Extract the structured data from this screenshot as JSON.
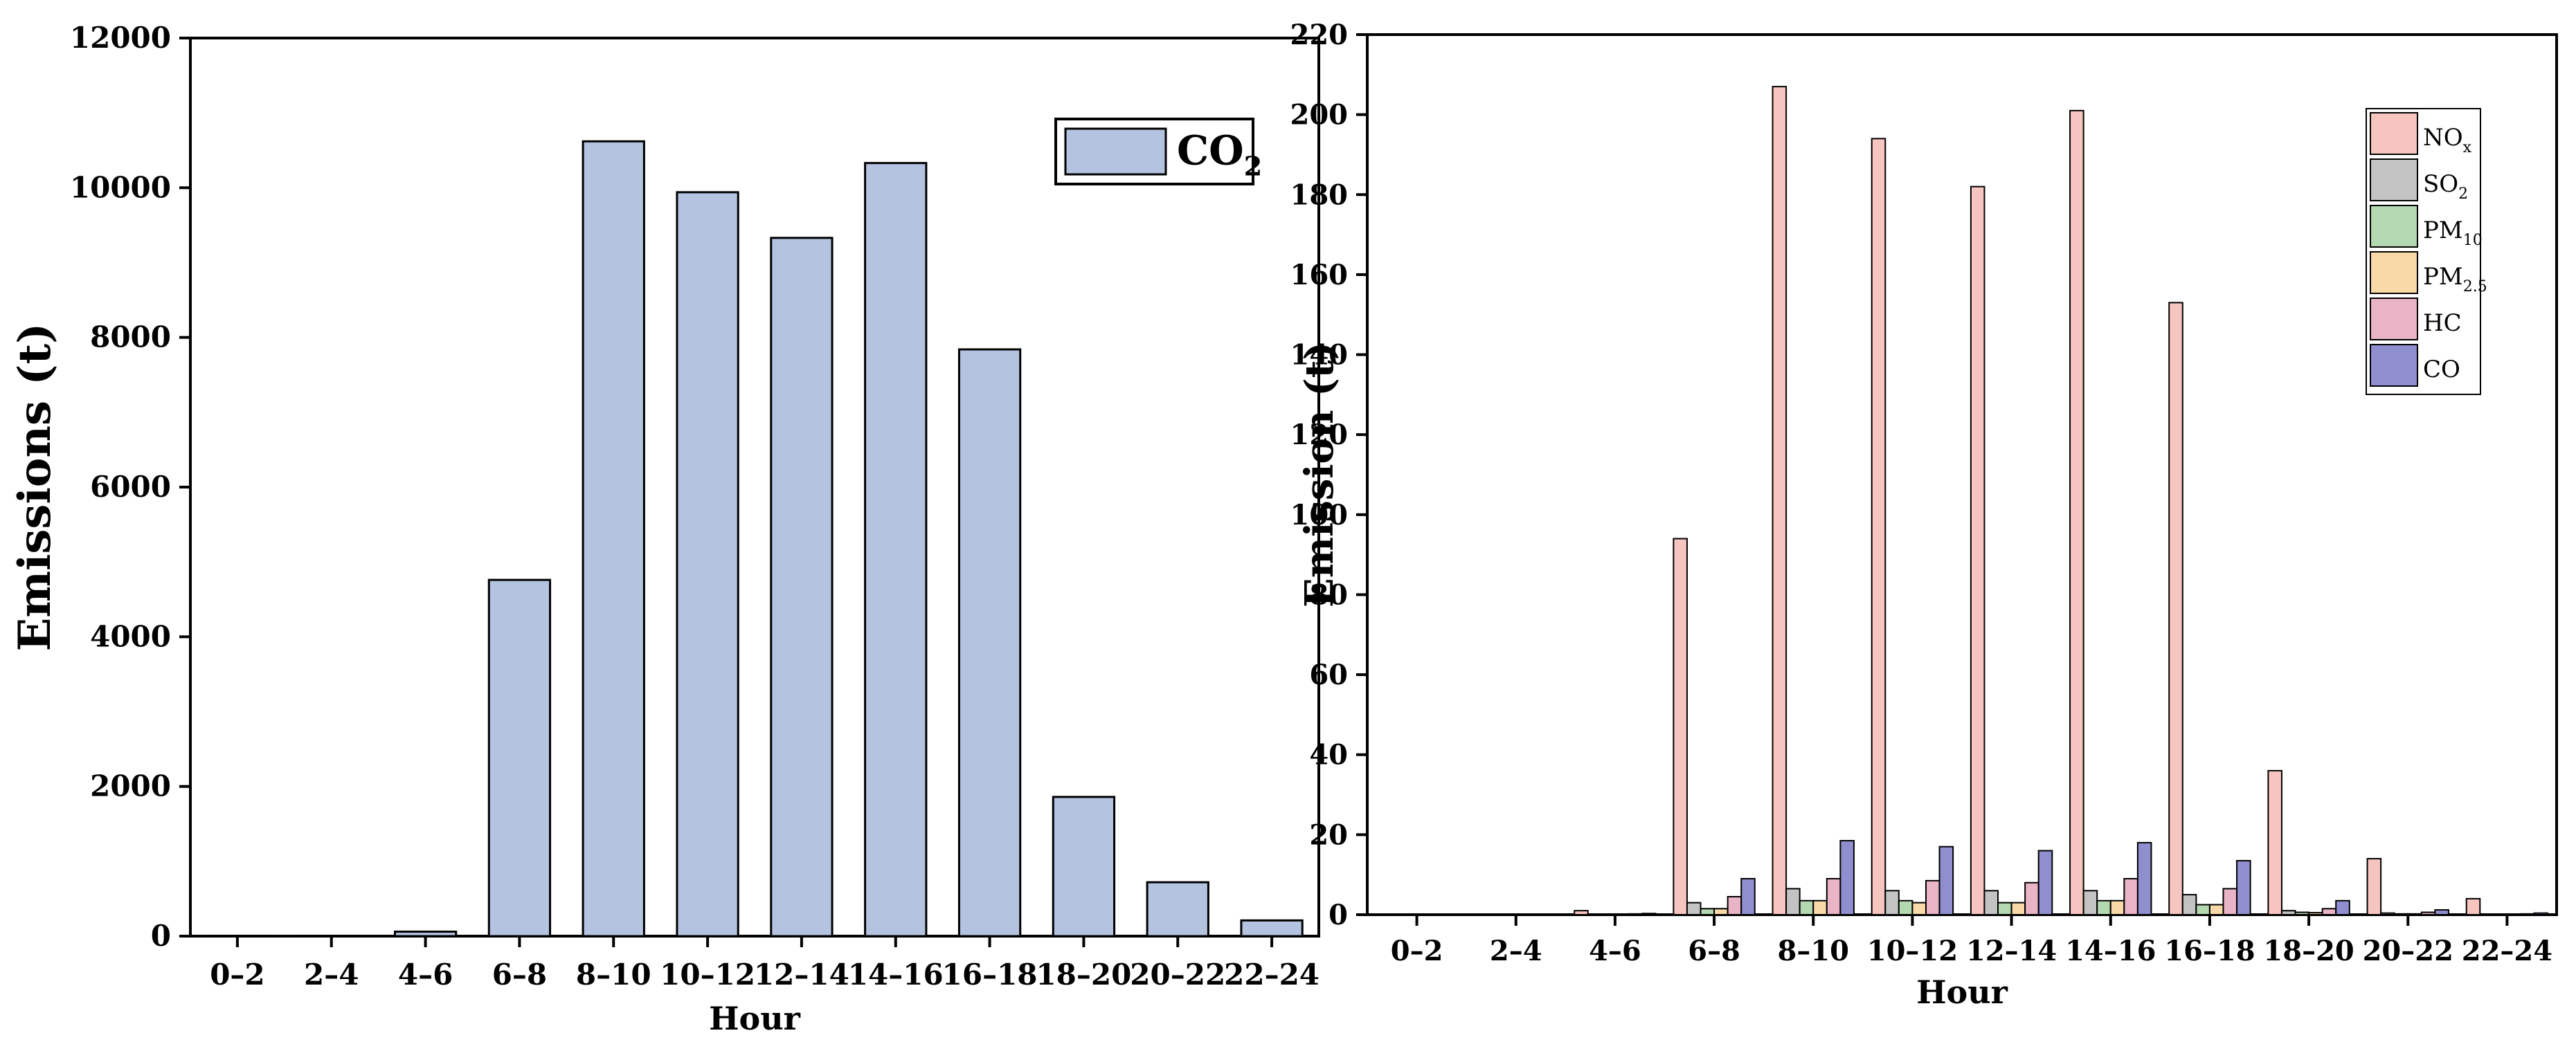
{
  "chart_data": [
    {
      "type": "bar",
      "categories": [
        "0–2",
        "2–4",
        "4–6",
        "6–8",
        "8–10",
        "10–12",
        "12–14",
        "14–16",
        "16–18",
        "18–20",
        "20–22",
        "22–24"
      ],
      "series": [
        {
          "name": "CO2",
          "label_main": "CO",
          "label_sub": "2",
          "color": "#b4c3e0",
          "values": [
            5,
            5,
            60,
            4760,
            10620,
            9940,
            9330,
            10330,
            7840,
            1860,
            720,
            210
          ]
        }
      ],
      "xlabel": "Hour",
      "ylabel": "Emissions (t)",
      "ylim": [
        0,
        12000
      ],
      "yticks": [
        0,
        2000,
        4000,
        6000,
        8000,
        10000,
        12000
      ],
      "grid": false,
      "legend": "top-right"
    },
    {
      "type": "bar",
      "categories": [
        "0–2",
        "2–4",
        "4–6",
        "6–8",
        "8–10",
        "10–12",
        "12–14",
        "14–16",
        "16–18",
        "18–20",
        "20–22",
        "22–24"
      ],
      "series": [
        {
          "name": "NOx",
          "label_main": "NO",
          "label_sub": "x",
          "color": "#f7c5c0",
          "values": [
            0,
            0,
            1,
            94,
            207,
            194,
            182,
            201,
            153,
            36,
            14,
            4
          ]
        },
        {
          "name": "SO2",
          "label_main": "SO",
          "label_sub": "2",
          "color": "#c3c3c3",
          "values": [
            0,
            0,
            0.1,
            3,
            6.5,
            6,
            6,
            6,
            5,
            1,
            0.4,
            0.1
          ]
        },
        {
          "name": "PM10",
          "label_main": "PM",
          "label_sub": "10",
          "color": "#b4d9b0",
          "values": [
            0,
            0,
            0.1,
            1.5,
            3.5,
            3.5,
            3,
            3.5,
            2.5,
            0.6,
            0.2,
            0.1
          ]
        },
        {
          "name": "PM2.5",
          "label_main": "PM",
          "label_sub": "2.5",
          "color": "#fad9a8",
          "values": [
            0,
            0,
            0.1,
            1.5,
            3.5,
            3,
            3,
            3.5,
            2.5,
            0.5,
            0.2,
            0.1
          ]
        },
        {
          "name": "HC",
          "label_main": "HC",
          "label_sub": "",
          "color": "#e8b4c6",
          "values": [
            0,
            0,
            0.2,
            4.5,
            9,
            8.5,
            8,
            9,
            6.5,
            1.5,
            0.6,
            0.2
          ]
        },
        {
          "name": "CO",
          "label_main": "CO",
          "label_sub": "",
          "color": "#8f8fcf",
          "values": [
            0,
            0,
            0.3,
            9,
            18.5,
            17,
            16,
            18,
            13.5,
            3.5,
            1.2,
            0.4
          ]
        }
      ],
      "xlabel": "Hour",
      "ylabel": "Emission (t)",
      "ylim": [
        0,
        220
      ],
      "yticks": [
        0,
        20,
        40,
        60,
        80,
        100,
        120,
        140,
        160,
        180,
        200,
        220
      ],
      "grid": false,
      "legend": "top-right"
    }
  ]
}
